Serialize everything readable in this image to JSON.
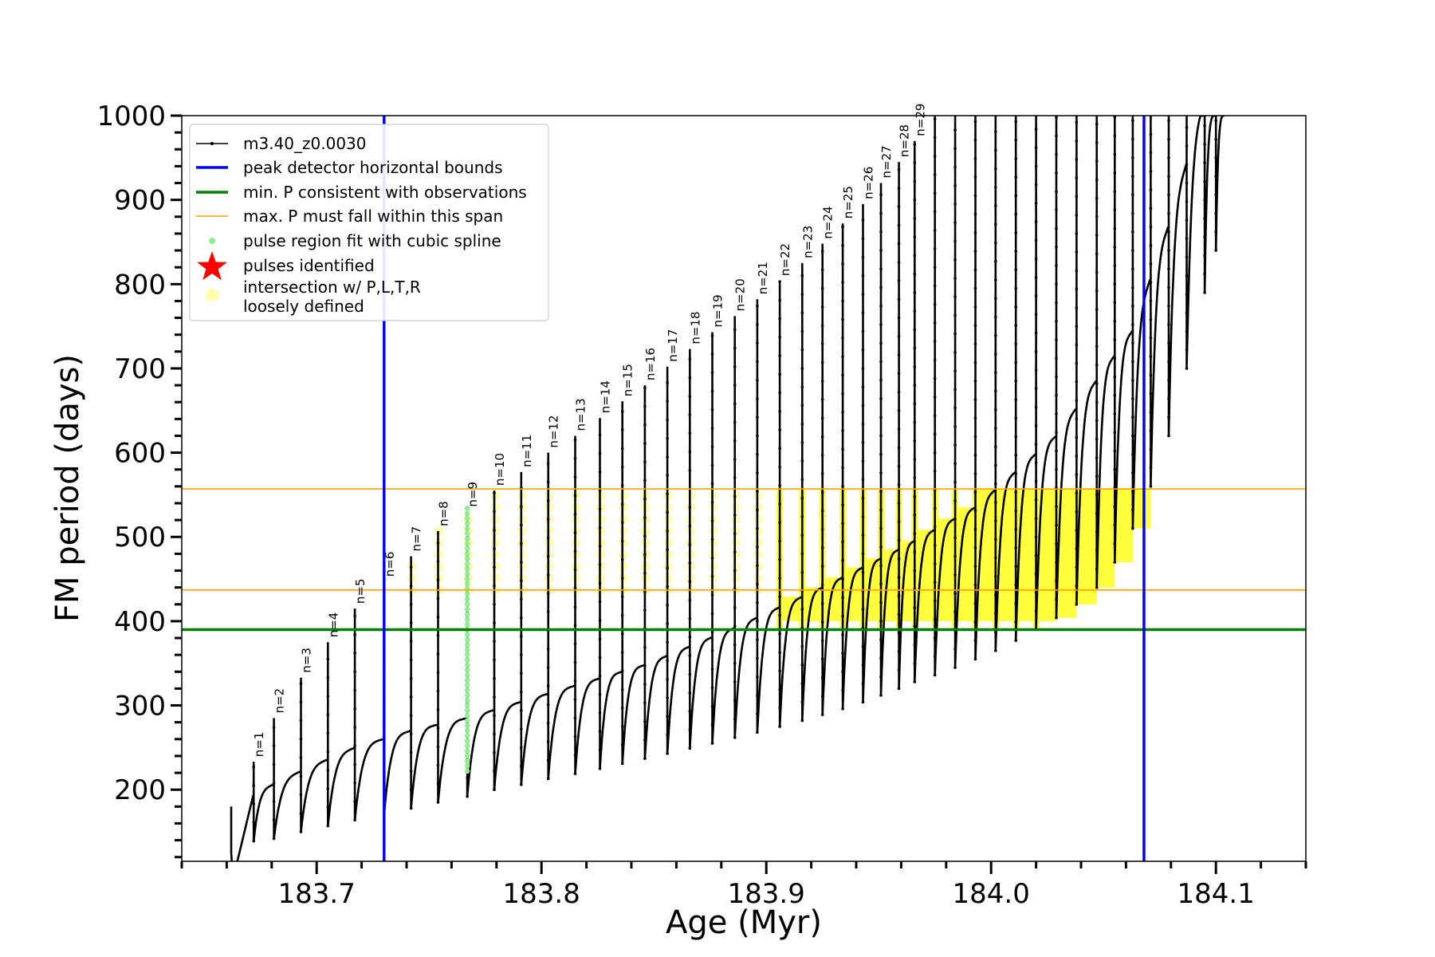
{
  "chart_data": {
    "type": "line",
    "xlabel": "Age (Myr)",
    "ylabel": "FM period (days)",
    "xlim": [
      183.64,
      184.14
    ],
    "ylim": [
      115,
      1000
    ],
    "xticks": [
      183.7,
      183.8,
      183.9,
      184.0,
      184.1
    ],
    "xtick_labels": [
      "183.7",
      "183.8",
      "183.9",
      "184.0",
      "184.1"
    ],
    "yticks": [
      200,
      300,
      400,
      500,
      600,
      700,
      800,
      900,
      1000
    ],
    "ytick_labels": [
      "200",
      "300",
      "400",
      "500",
      "600",
      "700",
      "800",
      "900",
      "1000"
    ],
    "legend_position": "upper-left",
    "legend": [
      {
        "label": "m3.40_z0.0030",
        "style": "line-marker",
        "color": "#000000"
      },
      {
        "label": "peak detector horizontal bounds",
        "style": "line",
        "color": "#0000ff"
      },
      {
        "label": "min. P consistent with observations",
        "style": "line",
        "color": "#008000"
      },
      {
        "label": "max. P must fall within this span",
        "style": "thin-line",
        "color": "#ffa500"
      },
      {
        "label": "pulse region fit with cubic spline",
        "style": "dot",
        "color": "#90ee90"
      },
      {
        "label": "pulses identified",
        "style": "star",
        "color": "#ff0000"
      },
      {
        "label": "intersection w/ P,L,T,R\nloosely defined",
        "style": "circle",
        "color": "#ffff99"
      }
    ],
    "vertical_lines": {
      "color": "#0000ff",
      "x": [
        183.73,
        184.068
      ]
    },
    "min_period_line": {
      "color": "#008000",
      "y": 390
    },
    "max_period_span": {
      "color": "#ffa500",
      "y": [
        437,
        557
      ]
    },
    "spline_fit_region": {
      "color": "#90ee90",
      "x": 183.767,
      "y_range": [
        222,
        535
      ]
    },
    "pulses": [
      {
        "n": 1,
        "age": 183.672,
        "peak": 233,
        "base": 139
      },
      {
        "n": 2,
        "age": 183.681,
        "peak": 285,
        "base": 142
      },
      {
        "n": 3,
        "age": 183.693,
        "peak": 333,
        "base": 150
      },
      {
        "n": 4,
        "age": 183.705,
        "peak": 375,
        "base": 157
      },
      {
        "n": 5,
        "age": 183.717,
        "peak": 415,
        "base": 164
      },
      {
        "n": 6,
        "age": 183.73,
        "peak": 447,
        "base": 171
      },
      {
        "n": 7,
        "age": 183.742,
        "peak": 477,
        "base": 178
      },
      {
        "n": 8,
        "age": 183.754,
        "peak": 507,
        "base": 185
      },
      {
        "n": 9,
        "age": 183.767,
        "peak": 530,
        "base": 192
      },
      {
        "n": 10,
        "age": 183.779,
        "peak": 555,
        "base": 200
      },
      {
        "n": 11,
        "age": 183.791,
        "peak": 577,
        "base": 206
      },
      {
        "n": 12,
        "age": 183.803,
        "peak": 600,
        "base": 213
      },
      {
        "n": 13,
        "age": 183.815,
        "peak": 620,
        "base": 219
      },
      {
        "n": 14,
        "age": 183.826,
        "peak": 641,
        "base": 225
      },
      {
        "n": 15,
        "age": 183.836,
        "peak": 661,
        "base": 231
      },
      {
        "n": 16,
        "age": 183.846,
        "peak": 680,
        "base": 237
      },
      {
        "n": 17,
        "age": 183.856,
        "peak": 702,
        "base": 243
      },
      {
        "n": 18,
        "age": 183.866,
        "peak": 723,
        "base": 249
      },
      {
        "n": 19,
        "age": 183.876,
        "peak": 743,
        "base": 255
      },
      {
        "n": 20,
        "age": 183.886,
        "peak": 762,
        "base": 262
      },
      {
        "n": 21,
        "age": 183.896,
        "peak": 782,
        "base": 268
      },
      {
        "n": 22,
        "age": 183.906,
        "peak": 804,
        "base": 275
      },
      {
        "n": 23,
        "age": 183.916,
        "peak": 825,
        "base": 282
      },
      {
        "n": 24,
        "age": 183.925,
        "peak": 848,
        "base": 289
      },
      {
        "n": 25,
        "age": 183.934,
        "peak": 872,
        "base": 296
      },
      {
        "n": 26,
        "age": 183.943,
        "peak": 895,
        "base": 304
      },
      {
        "n": 27,
        "age": 183.951,
        "peak": 920,
        "base": 312
      },
      {
        "n": 28,
        "age": 183.959,
        "peak": 945,
        "base": 320
      },
      {
        "n": 29,
        "age": 183.966,
        "peak": 970,
        "base": 328
      }
    ],
    "later_pulses": [
      {
        "age": 183.975,
        "base": 336
      },
      {
        "age": 183.984,
        "base": 345
      },
      {
        "age": 183.993,
        "base": 355
      },
      {
        "age": 184.002,
        "base": 365
      },
      {
        "age": 184.011,
        "base": 377
      },
      {
        "age": 184.02,
        "base": 390
      },
      {
        "age": 184.029,
        "base": 404
      },
      {
        "age": 184.038,
        "base": 420
      },
      {
        "age": 184.047,
        "base": 440
      },
      {
        "age": 184.055,
        "base": 470
      },
      {
        "age": 184.063,
        "base": 510
      },
      {
        "age": 184.071,
        "base": 560
      },
      {
        "age": 184.079,
        "base": 620
      },
      {
        "age": 184.087,
        "base": 700
      },
      {
        "age": 184.095,
        "base": 790
      },
      {
        "age": 184.1,
        "base": 840
      }
    ],
    "envelope": [
      {
        "age": 183.662,
        "y": 125
      },
      {
        "age": 183.672,
        "y": 195
      },
      {
        "age": 183.693,
        "y": 222
      },
      {
        "age": 183.717,
        "y": 250
      },
      {
        "age": 183.742,
        "y": 270
      },
      {
        "age": 183.767,
        "y": 285
      },
      {
        "age": 183.803,
        "y": 314
      },
      {
        "age": 183.846,
        "y": 348
      },
      {
        "age": 183.886,
        "y": 392
      },
      {
        "age": 183.925,
        "y": 440
      },
      {
        "age": 183.959,
        "y": 485
      },
      {
        "age": 183.993,
        "y": 535
      },
      {
        "age": 184.029,
        "y": 620
      },
      {
        "age": 184.063,
        "y": 745
      },
      {
        "age": 184.079,
        "y": 870
      },
      {
        "age": 184.093,
        "y": 1000
      }
    ]
  }
}
